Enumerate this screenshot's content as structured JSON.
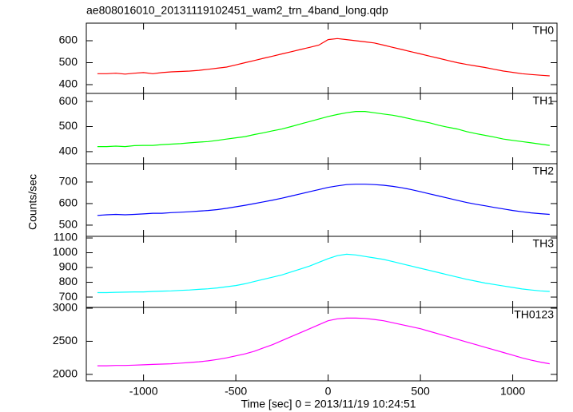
{
  "chart_data": {
    "type": "line",
    "title": "ae808016010_20131119102451_wam2_trn_4band_long.qdp",
    "xlabel": "Time [sec] 0 = 2013/11/19 10:24:51",
    "ylabel": "Counts/sec",
    "xlim": [
      -1310,
      1240
    ],
    "xticks": [
      -1000,
      -500,
      0,
      500,
      1000
    ],
    "x": [
      -1250,
      -1200,
      -1150,
      -1100,
      -1050,
      -1000,
      -950,
      -900,
      -850,
      -800,
      -750,
      -700,
      -650,
      -600,
      -550,
      -500,
      -450,
      -400,
      -350,
      -300,
      -250,
      -200,
      -150,
      -100,
      -50,
      0,
      50,
      100,
      150,
      200,
      250,
      300,
      350,
      400,
      450,
      500,
      550,
      600,
      650,
      700,
      750,
      800,
      850,
      900,
      950,
      1000,
      1050,
      1100,
      1150,
      1200
    ],
    "series": [
      {
        "name": "TH0",
        "color": "#ff0000",
        "ylim": [
          360,
          680
        ],
        "yticks": [
          400,
          500,
          600
        ],
        "values": [
          450,
          450,
          452,
          448,
          452,
          455,
          450,
          455,
          458,
          460,
          462,
          465,
          470,
          475,
          480,
          490,
          500,
          510,
          520,
          530,
          540,
          550,
          560,
          570,
          580,
          605,
          610,
          605,
          600,
          595,
          590,
          580,
          570,
          560,
          550,
          540,
          530,
          520,
          510,
          500,
          492,
          485,
          478,
          470,
          462,
          456,
          450,
          446,
          443,
          440
        ]
      },
      {
        "name": "TH1",
        "color": "#00ff00",
        "ylim": [
          352,
          632
        ],
        "yticks": [
          400,
          500,
          600
        ],
        "values": [
          420,
          420,
          422,
          420,
          424,
          425,
          425,
          428,
          430,
          432,
          435,
          438,
          440,
          445,
          450,
          455,
          460,
          468,
          475,
          483,
          490,
          500,
          510,
          520,
          530,
          540,
          548,
          555,
          560,
          560,
          555,
          550,
          545,
          538,
          530,
          522,
          515,
          505,
          497,
          490,
          480,
          472,
          465,
          458,
          450,
          445,
          440,
          435,
          430,
          425
        ]
      },
      {
        "name": "TH2",
        "color": "#0000ff",
        "ylim": [
          448,
          785
        ],
        "yticks": [
          500,
          600,
          700
        ],
        "values": [
          545,
          548,
          550,
          548,
          550,
          552,
          555,
          555,
          558,
          560,
          562,
          565,
          568,
          572,
          578,
          585,
          592,
          600,
          608,
          616,
          625,
          635,
          645,
          655,
          665,
          675,
          682,
          688,
          690,
          690,
          688,
          685,
          680,
          673,
          665,
          655,
          645,
          635,
          625,
          615,
          605,
          597,
          590,
          582,
          575,
          568,
          562,
          557,
          553,
          550
        ]
      },
      {
        "name": "TH3",
        "color": "#00ffff",
        "ylim": [
          630,
          1111
        ],
        "yticks": [
          700,
          800,
          900,
          1000,
          1100
        ],
        "values": [
          730,
          730,
          732,
          733,
          735,
          735,
          738,
          740,
          742,
          745,
          748,
          752,
          756,
          762,
          770,
          778,
          790,
          805,
          820,
          835,
          850,
          870,
          890,
          910,
          935,
          960,
          980,
          990,
          985,
          975,
          965,
          955,
          940,
          925,
          910,
          895,
          880,
          865,
          850,
          835,
          820,
          808,
          795,
          785,
          775,
          765,
          755,
          748,
          742,
          738
        ]
      },
      {
        "name": "TH0123",
        "color": "#ff00ff",
        "ylim": [
          1902,
          3012
        ],
        "yticks": [
          2000,
          2500,
          3000
        ],
        "values": [
          2130,
          2130,
          2135,
          2135,
          2140,
          2145,
          2150,
          2155,
          2160,
          2170,
          2180,
          2190,
          2205,
          2225,
          2250,
          2280,
          2310,
          2350,
          2400,
          2450,
          2510,
          2570,
          2630,
          2690,
          2750,
          2810,
          2840,
          2850,
          2850,
          2845,
          2830,
          2810,
          2780,
          2750,
          2720,
          2690,
          2650,
          2610,
          2570,
          2530,
          2490,
          2450,
          2410,
          2370,
          2330,
          2290,
          2250,
          2215,
          2185,
          2160
        ]
      }
    ]
  }
}
